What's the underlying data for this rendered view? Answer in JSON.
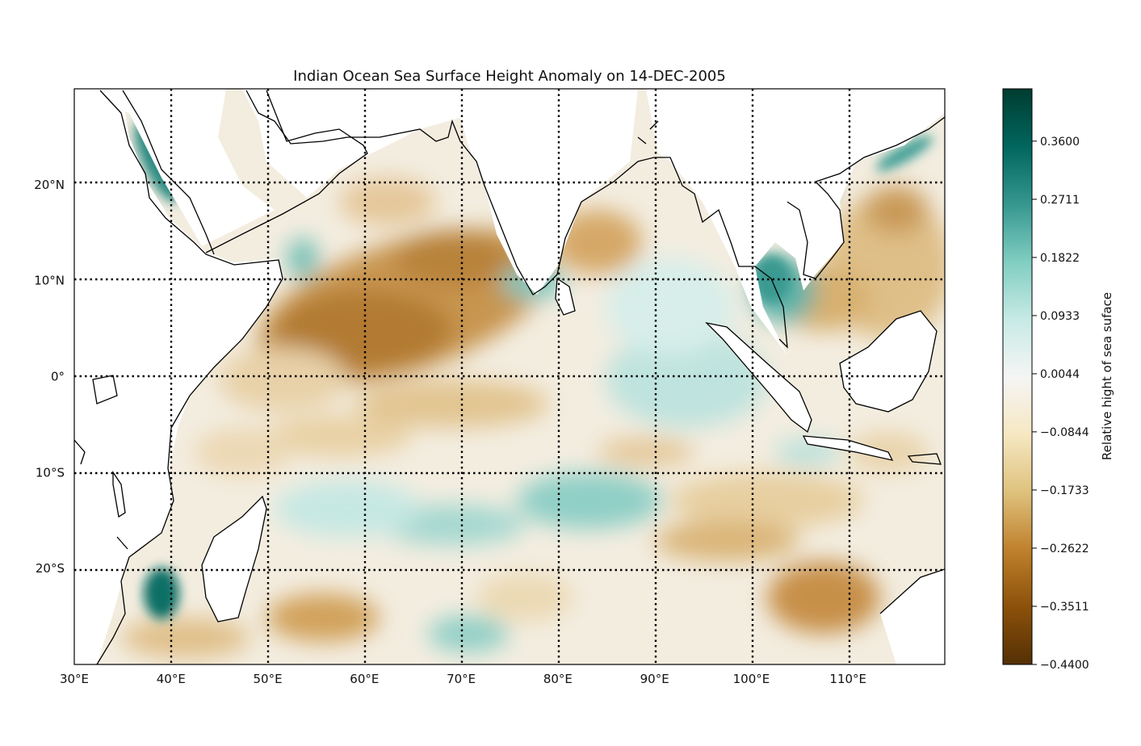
{
  "title": "Indian Ocean Sea Surface Height Anomaly on 14-DEC-2005",
  "map": {
    "lon_range": [
      30,
      120
    ],
    "lat_range": [
      -30,
      30
    ],
    "lon_ticks": [
      {
        "value": 30,
        "label": "30°E"
      },
      {
        "value": 40,
        "label": "40°E"
      },
      {
        "value": 50,
        "label": "50°E"
      },
      {
        "value": 60,
        "label": "60°E"
      },
      {
        "value": 70,
        "label": "70°E"
      },
      {
        "value": 80,
        "label": "80°E"
      },
      {
        "value": 90,
        "label": "90°E"
      },
      {
        "value": 100,
        "label": "100°E"
      },
      {
        "value": 110,
        "label": "110°E"
      }
    ],
    "lat_ticks": [
      {
        "value": 20,
        "label": "20°N"
      },
      {
        "value": 10,
        "label": "10°N"
      },
      {
        "value": 0,
        "label": "0°"
      },
      {
        "value": -10,
        "label": "10°S"
      },
      {
        "value": -20,
        "label": "20°S"
      }
    ],
    "gridlines": "dotted black",
    "land_color": "#ffffff",
    "coastline_color": "#000000"
  },
  "colorbar": {
    "label": "Relative hight of sea suface",
    "min": -0.44,
    "max": 0.44,
    "ticks": [
      "0.3600",
      "0.2711",
      "0.1822",
      "0.0933",
      "0.0044",
      "−0.0844",
      "−0.1733",
      "−0.2622",
      "−0.3511",
      "−0.4400"
    ],
    "tick_values": [
      0.36,
      0.2711,
      0.1822,
      0.0933,
      0.0044,
      -0.0844,
      -0.1733,
      -0.2622,
      -0.3511,
      -0.44
    ],
    "colormap": [
      "#543005",
      "#8c510a",
      "#bf812d",
      "#dfc27d",
      "#f6e8c3",
      "#f5f5f5",
      "#c7eae5",
      "#80cdc1",
      "#35978f",
      "#01665e",
      "#003c30"
    ]
  }
}
